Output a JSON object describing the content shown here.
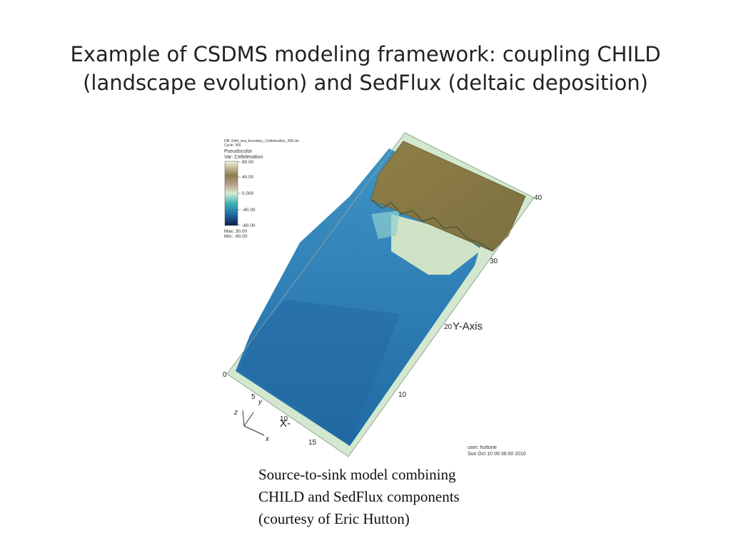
{
  "slide": {
    "title_line1": "Example of CSDMS modeling framework: coupling CHILD",
    "title_line2": "(landscape evolution) and SedFlux (deltaic deposition)"
  },
  "figure": {
    "header_line1": "DB: child_sea_boundary_Cellelevation_366.vtu",
    "header_line2": "Cycle: 366",
    "legend_title": "Pseudocolor",
    "legend_var": "Var: Cellelevation",
    "legend_ticks": [
      "80.00",
      "40.00",
      "0.000",
      "-40.00",
      "-80.00"
    ],
    "legend_max": "Max: 30.00",
    "legend_min": "Min: -80.00",
    "y_axis_label": "Y-Axis",
    "y_ticks": [
      "40",
      "30",
      "20",
      "10",
      "0"
    ],
    "x_ticks": [
      "5",
      "10",
      "15"
    ],
    "x_axis_label": "X-",
    "triad_z": "z",
    "triad_y": "y",
    "triad_x": "x",
    "user_line1": "user: huttone",
    "user_line2": "Sun Oct 10 00:36:00 2010",
    "colors": {
      "land": "#8a7a45",
      "shelf": "#d6e6c2",
      "sea": "#2f7fb6",
      "deep": "#1f5f94",
      "border": "#cfe6cf"
    }
  },
  "caption": {
    "line1": "Source-to-sink model combining",
    "line2": "CHILD and SedFlux components",
    "line3": "(courtesy of Eric Hutton)"
  }
}
